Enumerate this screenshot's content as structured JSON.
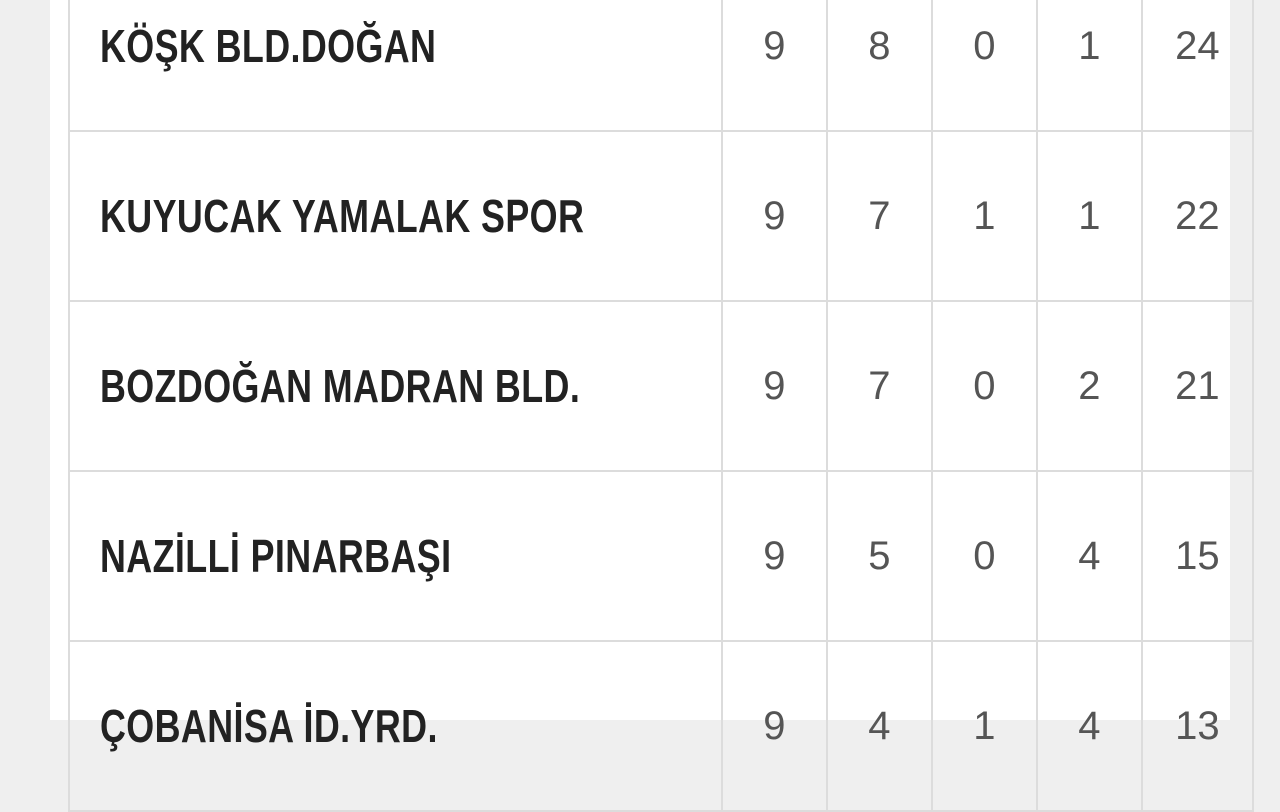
{
  "standings": {
    "rows": [
      {
        "team": "KÖŞK BLD.DOĞAN",
        "played": "9",
        "won": "8",
        "drawn": "0",
        "lost": "1",
        "points": "24"
      },
      {
        "team": "KUYUCAK YAMALAK SPOR",
        "played": "9",
        "won": "7",
        "drawn": "1",
        "lost": "1",
        "points": "22"
      },
      {
        "team": "BOZDOĞAN MADRAN BLD.",
        "played": "9",
        "won": "7",
        "drawn": "0",
        "lost": "2",
        "points": "21"
      },
      {
        "team": "NAZİLLİ PINARBAŞI",
        "played": "9",
        "won": "5",
        "drawn": "0",
        "lost": "4",
        "points": "15"
      },
      {
        "team": "ÇOBANİSA İD.YRD.",
        "played": "9",
        "won": "4",
        "drawn": "1",
        "lost": "4",
        "points": "13"
      }
    ]
  }
}
